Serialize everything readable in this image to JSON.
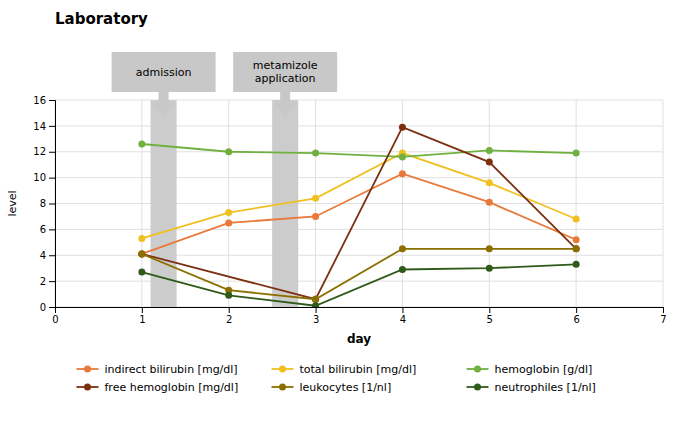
{
  "chart_data": {
    "type": "line",
    "title": "Laboratory",
    "xlabel": "day",
    "ylabel": "level",
    "xlim": [
      0,
      7
    ],
    "ylim": [
      0,
      16
    ],
    "xticks": [
      0,
      1,
      2,
      3,
      4,
      5,
      6,
      7
    ],
    "yticks": [
      0,
      2,
      4,
      6,
      8,
      10,
      12,
      14,
      16
    ],
    "grid": true,
    "legend": "bottom",
    "series": [
      {
        "name": "indirect bilirubin [mg/dl]",
        "color": "#E8793A",
        "marker": "circle",
        "x": [
          1,
          2,
          3,
          4,
          5,
          6
        ],
        "values": [
          4.1,
          6.5,
          7.0,
          10.3,
          8.1,
          5.2
        ]
      },
      {
        "name": "total bilirubin [mg/dl]",
        "color": "#F0C020",
        "marker": "circle",
        "x": [
          1,
          2,
          3,
          4,
          5,
          6
        ],
        "values": [
          5.3,
          7.3,
          8.4,
          11.9,
          9.6,
          6.8
        ]
      },
      {
        "name": "hemoglobin [g/dl]",
        "color": "#70B040",
        "marker": "circle",
        "x": [
          1,
          2,
          3,
          4,
          5,
          6
        ],
        "values": [
          12.6,
          12.0,
          11.9,
          11.6,
          12.1,
          11.9
        ]
      },
      {
        "name": "free hemoglobin [mg/dl]",
        "color": "#7B3010",
        "marker": "circle",
        "x": [
          1,
          3,
          4,
          5,
          6
        ],
        "values": [
          4.1,
          0.6,
          13.9,
          11.2,
          4.5
        ]
      },
      {
        "name": "leukocytes [1/nl]",
        "color": "#8B7000",
        "marker": "circle",
        "x": [
          1,
          2,
          3,
          4,
          5,
          6
        ],
        "values": [
          4.1,
          1.3,
          0.6,
          4.5,
          4.5,
          4.5
        ]
      },
      {
        "name": "neutrophiles [1/nl]",
        "color": "#2E5A1A",
        "marker": "circle",
        "x": [
          1,
          2,
          3,
          4,
          5,
          6
        ],
        "values": [
          2.7,
          0.9,
          0.1,
          2.9,
          3.0,
          3.3
        ]
      }
    ],
    "annotations": [
      {
        "label": "admission",
        "x": 1.25,
        "band_x": 1.1,
        "band_width": 0.3
      },
      {
        "label": "metamizole\napplication",
        "x": 2.65,
        "band_x": 2.5,
        "band_width": 0.3
      }
    ]
  }
}
